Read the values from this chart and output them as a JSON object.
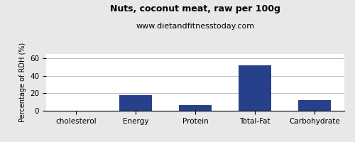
{
  "title": "Nuts, coconut meat, raw per 100g",
  "subtitle": "www.dietandfitnesstoday.com",
  "categories": [
    "cholesterol",
    "Energy",
    "Protein",
    "Total-Fat",
    "Carbohydrate"
  ],
  "values": [
    0,
    18,
    6.5,
    52,
    12.5
  ],
  "bar_color": "#27408b",
  "ylim": [
    0,
    65
  ],
  "yticks": [
    0,
    20,
    40,
    60
  ],
  "ylabel": "Percentage of RDH (%)",
  "background_color": "#e8e8e8",
  "plot_bg_color": "#ffffff",
  "title_fontsize": 9,
  "subtitle_fontsize": 8,
  "ylabel_fontsize": 7,
  "tick_fontsize": 7.5,
  "bar_width": 0.55
}
